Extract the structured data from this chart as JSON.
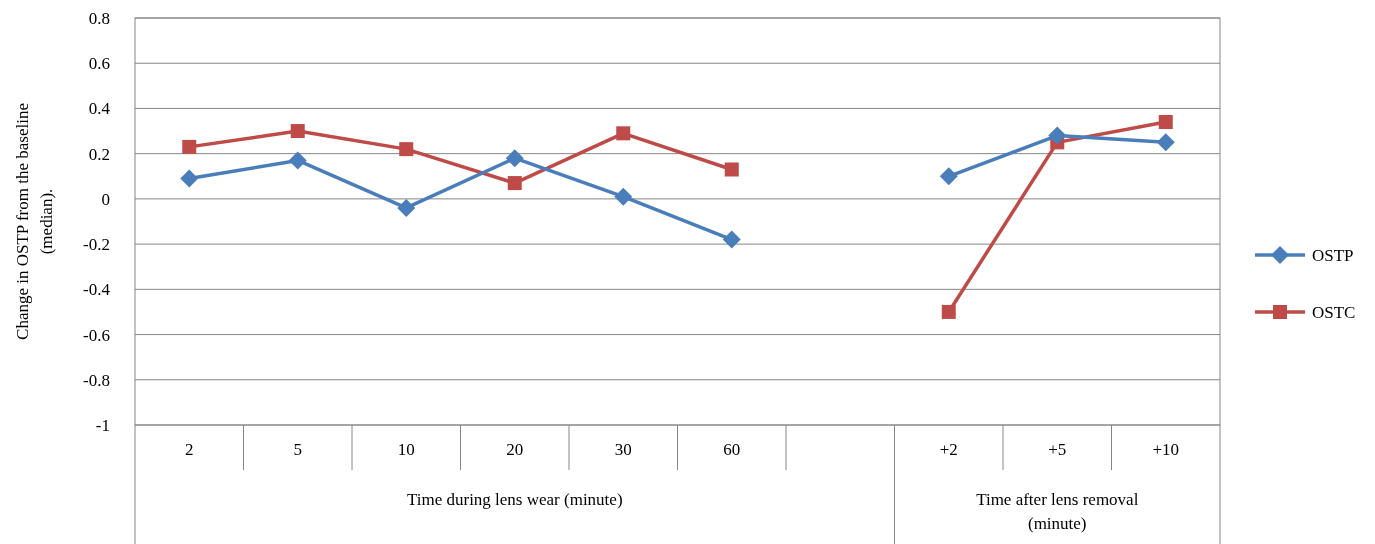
{
  "chart_data": {
    "type": "line",
    "ylabel": "Change in OSTP from the baseline (median).",
    "categories": [
      "2",
      "5",
      "10",
      "20",
      "30",
      "60",
      null,
      "+2",
      "+5",
      "+10"
    ],
    "series": [
      {
        "name": "OSTP",
        "color": "#4a7ebb",
        "marker": "diamond",
        "values": [
          0.09,
          0.17,
          -0.04,
          0.18,
          0.01,
          -0.18,
          null,
          0.1,
          0.28,
          0.25
        ]
      },
      {
        "name": "OSTC",
        "color": "#be4b48",
        "marker": "square",
        "values": [
          0.23,
          0.3,
          0.22,
          0.07,
          0.29,
          0.13,
          null,
          -0.5,
          0.25,
          0.34
        ]
      }
    ],
    "annotations": [
      "Time during lens wear (minute)",
      "Time after lens removal (minute)"
    ],
    "ylim": [
      -1,
      0.8
    ],
    "yticks": [
      -1,
      -0.8,
      -0.6,
      -0.4,
      -0.2,
      0,
      0.2,
      0.4,
      0.6,
      0.8
    ],
    "grid": "y",
    "legend": "right"
  }
}
